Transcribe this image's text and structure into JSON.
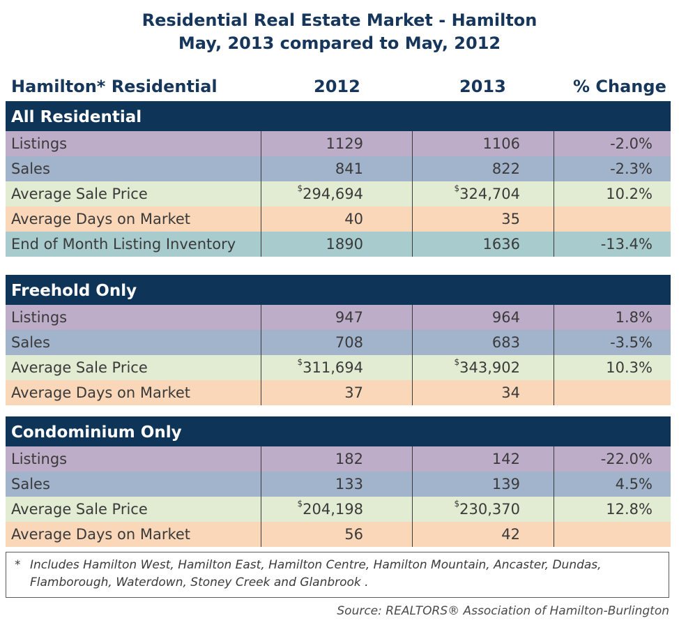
{
  "title_line1": "Residential Real Estate Market - Hamilton",
  "title_line2": "May, 2013 compared to May, 2012",
  "columns": [
    "Hamilton* Residential",
    "2012",
    "2013",
    "% Change"
  ],
  "chart_data": {
    "type": "table",
    "columns": [
      "Hamilton* Residential",
      "2012",
      "2013",
      "% Change"
    ],
    "sections": [
      {
        "name": "All Residential",
        "rows": [
          {
            "label": "Listings",
            "v2012": "1129",
            "v2013": "1106",
            "change": "-2.0%"
          },
          {
            "label": "Sales",
            "v2012": "841",
            "v2013": "822",
            "change": "-2.3%"
          },
          {
            "label": "Average Sale Price",
            "v2012": "294,694",
            "v2013": "324,704",
            "change": "10.2%"
          },
          {
            "label": "Average Days on Market",
            "v2012": "40",
            "v2013": "35",
            "change": ""
          },
          {
            "label": "End of Month Listing Inventory",
            "v2012": "1890",
            "v2013": "1636",
            "change": "-13.4%"
          }
        ]
      },
      {
        "name": "Freehold Only",
        "rows": [
          {
            "label": "Listings",
            "v2012": "947",
            "v2013": "964",
            "change": "1.8%"
          },
          {
            "label": "Sales",
            "v2012": "708",
            "v2013": "683",
            "change": "-3.5%"
          },
          {
            "label": "Average Sale Price",
            "v2012": "311,694",
            "v2013": "343,902",
            "change": "10.3%"
          },
          {
            "label": "Average Days on Market",
            "v2012": "37",
            "v2013": "34",
            "change": ""
          }
        ]
      },
      {
        "name": "Condominium Only",
        "rows": [
          {
            "label": "Listings",
            "v2012": "182",
            "v2013": "142",
            "change": "-22.0%"
          },
          {
            "label": "Sales",
            "v2012": "133",
            "v2013": "139",
            "change": "4.5%"
          },
          {
            "label": "Average Sale Price",
            "v2012": "204,198",
            "v2013": "230,370",
            "change": "12.8%"
          },
          {
            "label": "Average Days on Market",
            "v2012": "56",
            "v2013": "42",
            "change": ""
          }
        ]
      }
    ]
  },
  "currency_symbol": "$",
  "footnote_star": "*",
  "footnote_text": "Includes Hamilton West, Hamilton East, Hamilton Centre, Hamilton Mountain, Ancaster, Dundas, Flamborough, Waterdown, Stoney Creek and Glanbrook .",
  "source": "Source:  REALTORS® Association of Hamilton-Burlington",
  "colors": {
    "band": "#0e3558",
    "title": "#16365c",
    "listings": "#beadc9",
    "sales": "#a2b3cc",
    "price": "#e2ecd2",
    "dom": "#fad7b8",
    "inventory": "#a8ccce"
  }
}
